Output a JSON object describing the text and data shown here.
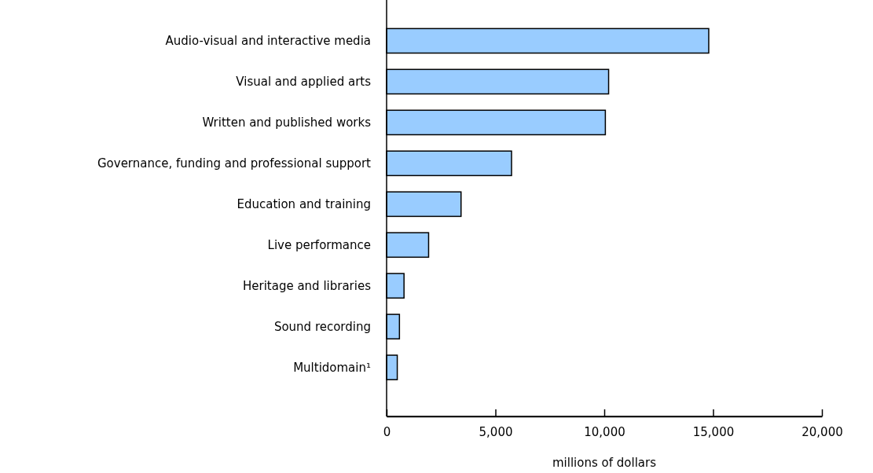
{
  "chart_data": {
    "type": "bar",
    "orientation": "horizontal",
    "xlabel": "millions of dollars",
    "categories": [
      "Audio-visual and interactive media",
      "Visual and applied arts",
      "Written and published works",
      "Governance, funding and professional support",
      "Education and training",
      "Live performance",
      "Heritage and libraries",
      "Sound recording",
      "Multidomain¹"
    ],
    "values": [
      14800,
      10200,
      10050,
      5740,
      3420,
      1930,
      800,
      590,
      490
    ],
    "color": "#99ccff",
    "xlim": [
      0,
      20000
    ],
    "xticks": [
      {
        "value": 0,
        "label": "0"
      },
      {
        "value": 5000,
        "label": "5,000"
      },
      {
        "value": 10000,
        "label": "10,000"
      },
      {
        "value": 15000,
        "label": "15,000"
      },
      {
        "value": 20000,
        "label": "20,000"
      }
    ],
    "grid": false
  }
}
